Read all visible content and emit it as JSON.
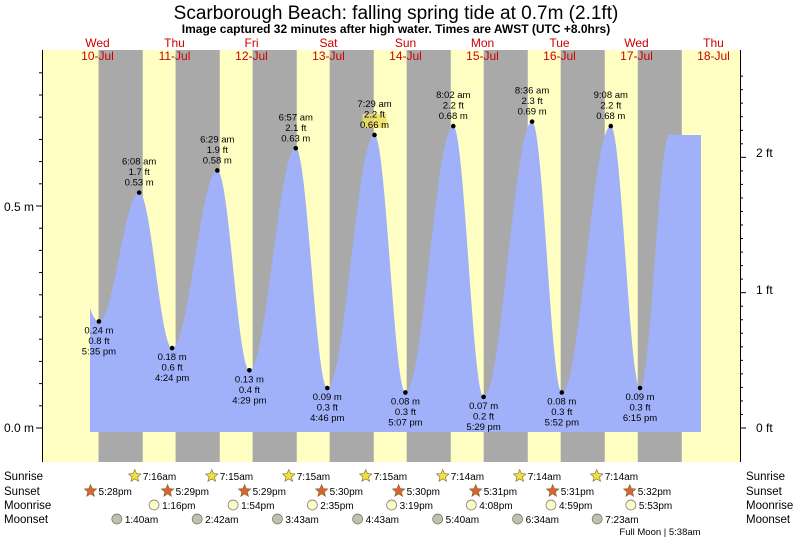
{
  "title": "Scarborough Beach: falling  spring tide at 0.7m (2.1ft)",
  "subtitle": "Image captured 32 minutes after high water. Times are AWST (UTC +8.0hrs)",
  "days": [
    {
      "name": "Wed",
      "date": "10-Jul"
    },
    {
      "name": "Thu",
      "date": "11-Jul"
    },
    {
      "name": "Fri",
      "date": "12-Jul"
    },
    {
      "name": "Sat",
      "date": "13-Jul"
    },
    {
      "name": "Sun",
      "date": "14-Jul"
    },
    {
      "name": "Mon",
      "date": "15-Jul"
    },
    {
      "name": "Tue",
      "date": "16-Jul"
    },
    {
      "name": "Wed",
      "date": "17-Jul"
    },
    {
      "name": "Thu",
      "date": "18-Jul"
    }
  ],
  "y_labels_left": [
    "0.5 m",
    "0.0 m"
  ],
  "y_labels_right": [
    "2 ft",
    "1 ft",
    "0 ft"
  ],
  "row_labels": {
    "sunrise": "Sunrise",
    "sunset": "Sunset",
    "moonrise": "Moonrise",
    "moonset": "Moonset"
  },
  "sunrise": [
    "7:16am",
    "7:15am",
    "7:15am",
    "7:15am",
    "7:14am",
    "7:14am",
    "7:14am"
  ],
  "sunset": [
    "5:28pm",
    "5:29pm",
    "5:29pm",
    "5:30pm",
    "5:30pm",
    "5:31pm",
    "5:31pm",
    "5:32pm"
  ],
  "moonrise": [
    "1:16pm",
    "1:54pm",
    "2:35pm",
    "3:19pm",
    "4:08pm",
    "4:59pm",
    "5:53pm"
  ],
  "moonset": [
    "1:40am",
    "2:42am",
    "3:43am",
    "4:43am",
    "5:40am",
    "6:34am",
    "7:23am"
  ],
  "footer": "Full Moon | 5:38am",
  "colors": {
    "tide": "#a0b1fa",
    "day": "#ffffc4",
    "night": "#a9a9a9",
    "sun_rise": "#f0e040",
    "sun_set": "#e06030",
    "moon_rise": "#fcfcc8",
    "moon_set": "#c0c0b0"
  },
  "chart_data": {
    "type": "area",
    "title": "Scarborough Beach: falling  spring tide at 0.7m (2.1ft)",
    "subtitle": "Image captured 32 minutes after high water. Times are AWST (UTC +8.0hrs)",
    "xlabel": "",
    "ylabel": "",
    "x_start": "10-Jul 00:00",
    "x_end": "18-Jul 00:00",
    "y_units": "m",
    "ylim": [
      -0.05,
      0.85
    ],
    "grid": false,
    "extremes": [
      {
        "day": 0,
        "time": "5:35 pm",
        "m": 0.24,
        "ft_label": "0.8 ft",
        "m_label": "0.24 m",
        "type": "low"
      },
      {
        "day": 1,
        "time": "6:08 am",
        "m": 0.53,
        "ft_label": "1.7 ft",
        "m_label": "0.53 m",
        "type": "high"
      },
      {
        "day": 1,
        "time": "4:24 pm",
        "m": 0.18,
        "ft_label": "0.6 ft",
        "m_label": "0.18 m",
        "type": "low"
      },
      {
        "day": 2,
        "time": "6:29 am",
        "m": 0.58,
        "ft_label": "1.9 ft",
        "m_label": "0.58 m",
        "type": "high"
      },
      {
        "day": 2,
        "time": "4:29 pm",
        "m": 0.13,
        "ft_label": "0.4 ft",
        "m_label": "0.13 m",
        "type": "low"
      },
      {
        "day": 3,
        "time": "6:57 am",
        "m": 0.63,
        "ft_label": "2.1 ft",
        "m_label": "0.63 m",
        "type": "high"
      },
      {
        "day": 3,
        "time": "4:46 pm",
        "m": 0.09,
        "ft_label": "0.3 ft",
        "m_label": "0.09 m",
        "type": "low"
      },
      {
        "day": 4,
        "time": "7:29 am",
        "m": 0.66,
        "ft_label": "2.2 ft",
        "m_label": "0.66 m",
        "type": "high"
      },
      {
        "day": 4,
        "time": "5:07 pm",
        "m": 0.08,
        "ft_label": "0.3 ft",
        "m_label": "0.08 m",
        "type": "low"
      },
      {
        "day": 5,
        "time": "8:02 am",
        "m": 0.68,
        "ft_label": "2.2 ft",
        "m_label": "0.68 m",
        "type": "high"
      },
      {
        "day": 5,
        "time": "5:29 pm",
        "m": 0.07,
        "ft_label": "0.2 ft",
        "m_label": "0.07 m",
        "type": "low"
      },
      {
        "day": 6,
        "time": "8:36 am",
        "m": 0.69,
        "ft_label": "2.3 ft",
        "m_label": "0.69 m",
        "type": "high"
      },
      {
        "day": 6,
        "time": "5:52 pm",
        "m": 0.08,
        "ft_label": "0.3 ft",
        "m_label": "0.08 m",
        "type": "low"
      },
      {
        "day": 7,
        "time": "9:08 am",
        "m": 0.68,
        "ft_label": "2.2 ft",
        "m_label": "0.68 m",
        "type": "high"
      },
      {
        "day": 7,
        "time": "6:15 pm",
        "m": 0.09,
        "ft_label": "0.3 ft",
        "m_label": "0.09 m",
        "type": "low"
      }
    ]
  }
}
